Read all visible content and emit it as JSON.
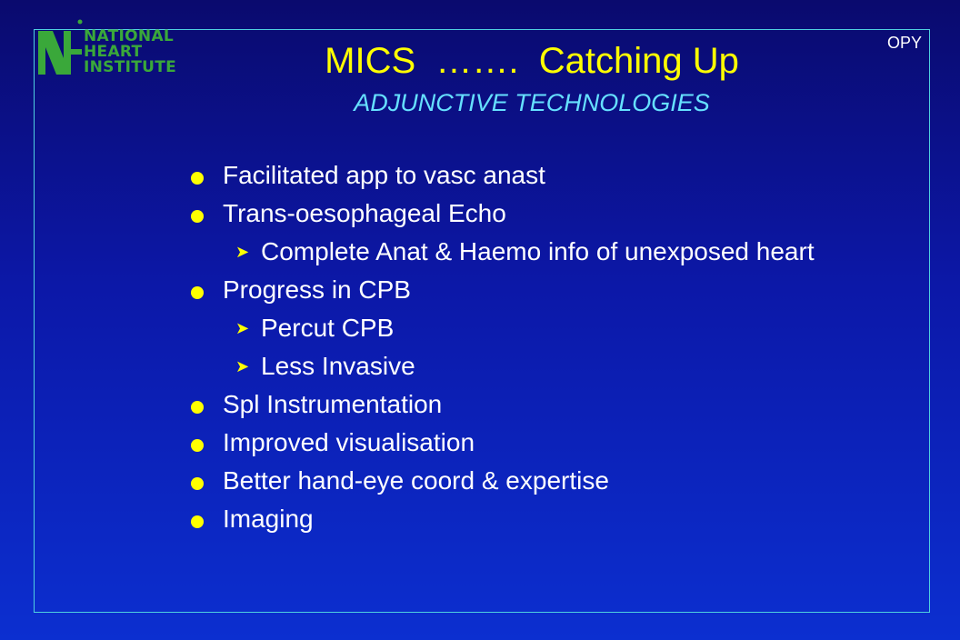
{
  "logo": {
    "line1": "NATIONAL",
    "line2": "HEART",
    "line3": "INSTITUTE",
    "color": "#3aa83a"
  },
  "corner_tag": "OPY",
  "title": "MICS  …….  Catching Up",
  "subtitle": "ADJUNCTIVE TECHNOLOGIES",
  "bullets": [
    {
      "level": 1,
      "text": "Facilitated app to vasc anast"
    },
    {
      "level": 1,
      "text": "Trans-oesophageal Echo"
    },
    {
      "level": 2,
      "text": "Complete  Anat & Haemo info of unexposed heart"
    },
    {
      "level": 1,
      "text": "Progress in CPB"
    },
    {
      "level": 2,
      "text": "Percut CPB"
    },
    {
      "level": 2,
      "text": "Less Invasive"
    },
    {
      "level": 1,
      "text": "Spl Instrumentation"
    },
    {
      "level": 1,
      "text": "Improved visualisation"
    },
    {
      "level": 1,
      "text": "Better hand-eye coord & expertise"
    },
    {
      "level": 1,
      "text": "Imaging"
    }
  ],
  "colors": {
    "title": "#ffff00",
    "subtitle": "#66e0ff",
    "bullet_marker": "#ffff00",
    "body_text": "#ffffff",
    "frame": "#4fd0e0"
  }
}
